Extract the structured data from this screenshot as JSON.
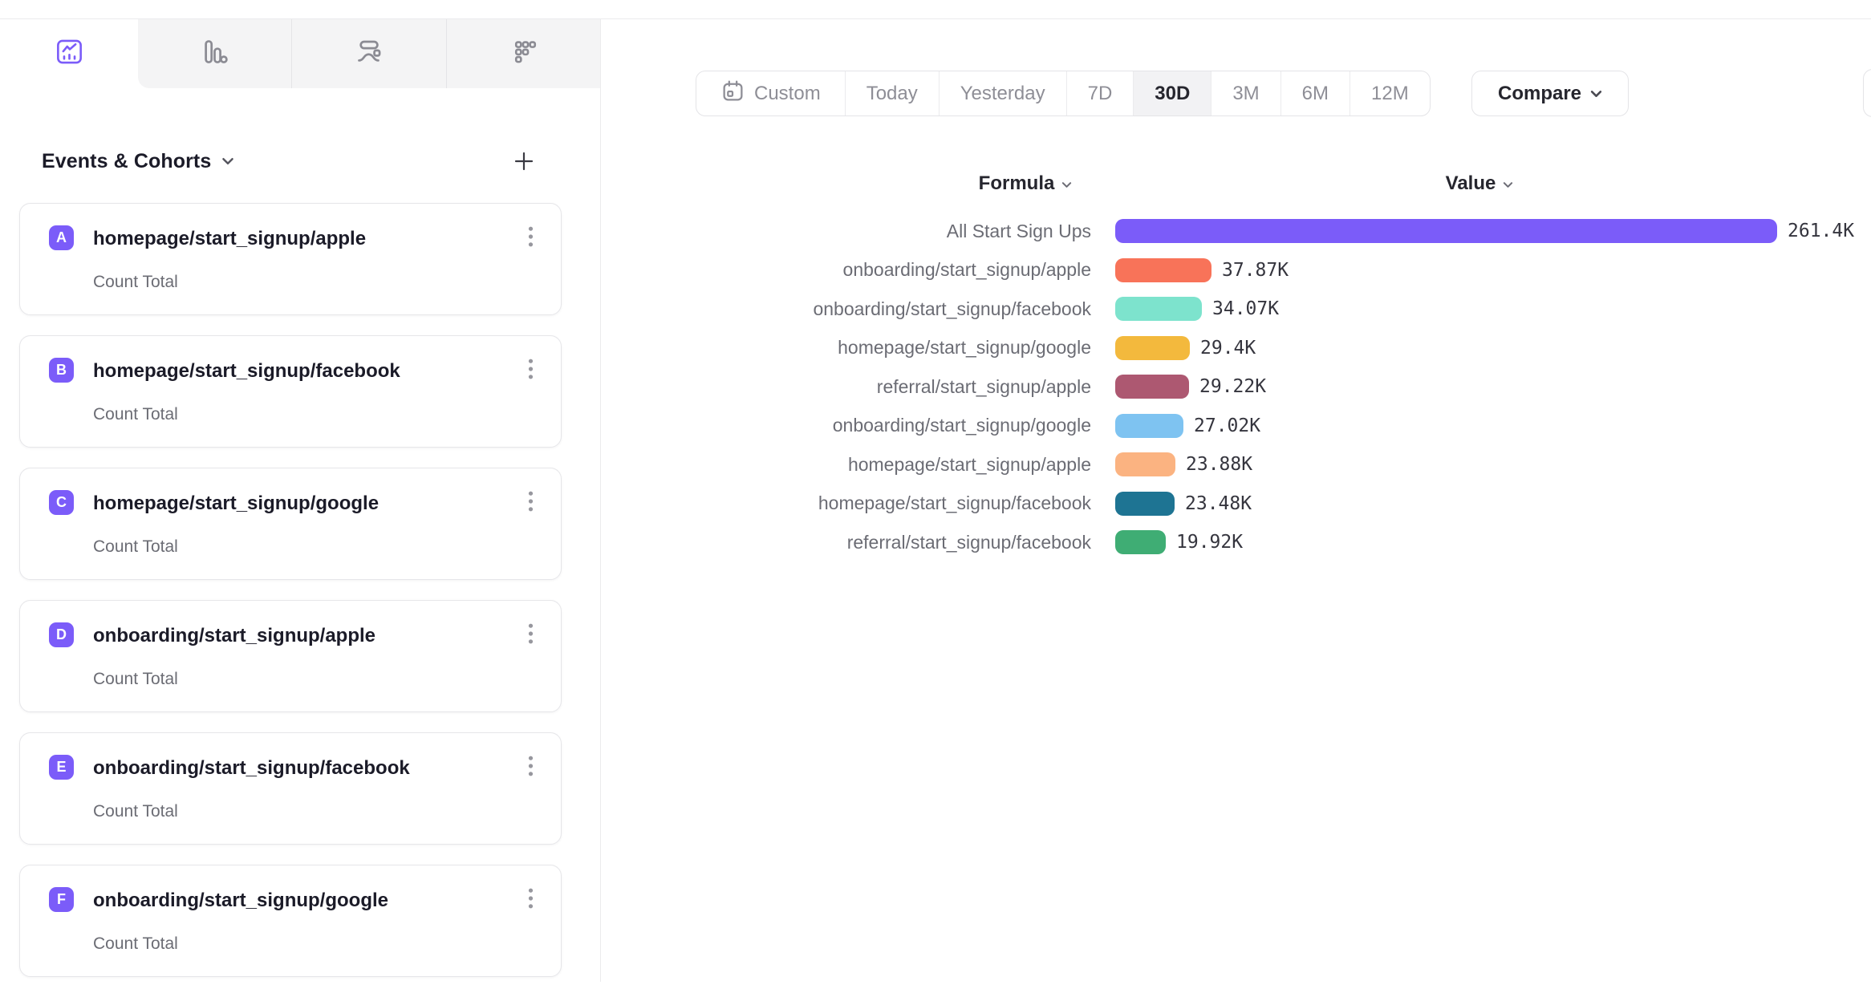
{
  "chart_type_tabs": {
    "items": [
      {
        "icon": "line-chart-icon",
        "active": true
      },
      {
        "icon": "bar-chart-icon",
        "active": false
      },
      {
        "icon": "flow-chart-icon",
        "active": false
      },
      {
        "icon": "retention-grid-icon",
        "active": false
      }
    ],
    "active_color": "#7b5cf9",
    "inactive_color": "#8b8b93"
  },
  "sidebar": {
    "title": "Events & Cohorts",
    "badge_color": "#7b5cf9",
    "cards": [
      {
        "letter": "A",
        "title": "homepage/start_signup/apple",
        "subtitle": "Count Total"
      },
      {
        "letter": "B",
        "title": "homepage/start_signup/facebook",
        "subtitle": "Count Total"
      },
      {
        "letter": "C",
        "title": "homepage/start_signup/google",
        "subtitle": "Count Total"
      },
      {
        "letter": "D",
        "title": "onboarding/start_signup/apple",
        "subtitle": "Count Total"
      },
      {
        "letter": "E",
        "title": "onboarding/start_signup/facebook",
        "subtitle": "Count Total"
      },
      {
        "letter": "F",
        "title": "onboarding/start_signup/google",
        "subtitle": "Count Total"
      }
    ]
  },
  "toolbar": {
    "date_ranges": [
      "Custom",
      "Today",
      "Yesterday",
      "7D",
      "30D",
      "3M",
      "6M",
      "12M"
    ],
    "selected_range": "30D",
    "compare_label": "Compare"
  },
  "table_headers": {
    "formula": "Formula",
    "value": "Value"
  },
  "chart_data": {
    "type": "bar",
    "orientation": "horizontal",
    "title": "",
    "xlabel": "Value",
    "ylabel": "Formula",
    "legend": false,
    "xlim": [
      0,
      261400
    ],
    "categories": [
      "All Start Sign Ups",
      "onboarding/start_signup/apple",
      "onboarding/start_signup/facebook",
      "homepage/start_signup/google",
      "referral/start_signup/apple",
      "onboarding/start_signup/google",
      "homepage/start_signup/apple",
      "homepage/start_signup/facebook",
      "referral/start_signup/facebook"
    ],
    "values": [
      261400,
      37870,
      34070,
      29400,
      29220,
      27020,
      23880,
      23480,
      19920
    ],
    "value_labels": [
      "261.4K",
      "37.87K",
      "34.07K",
      "29.4K",
      "29.22K",
      "27.02K",
      "23.88K",
      "23.48K",
      "19.92K"
    ],
    "colors": [
      "#7b5cf9",
      "#f87359",
      "#7de3cd",
      "#f3b93d",
      "#ad5871",
      "#7ec3f1",
      "#fbb381",
      "#1e7493",
      "#3fad74"
    ]
  }
}
